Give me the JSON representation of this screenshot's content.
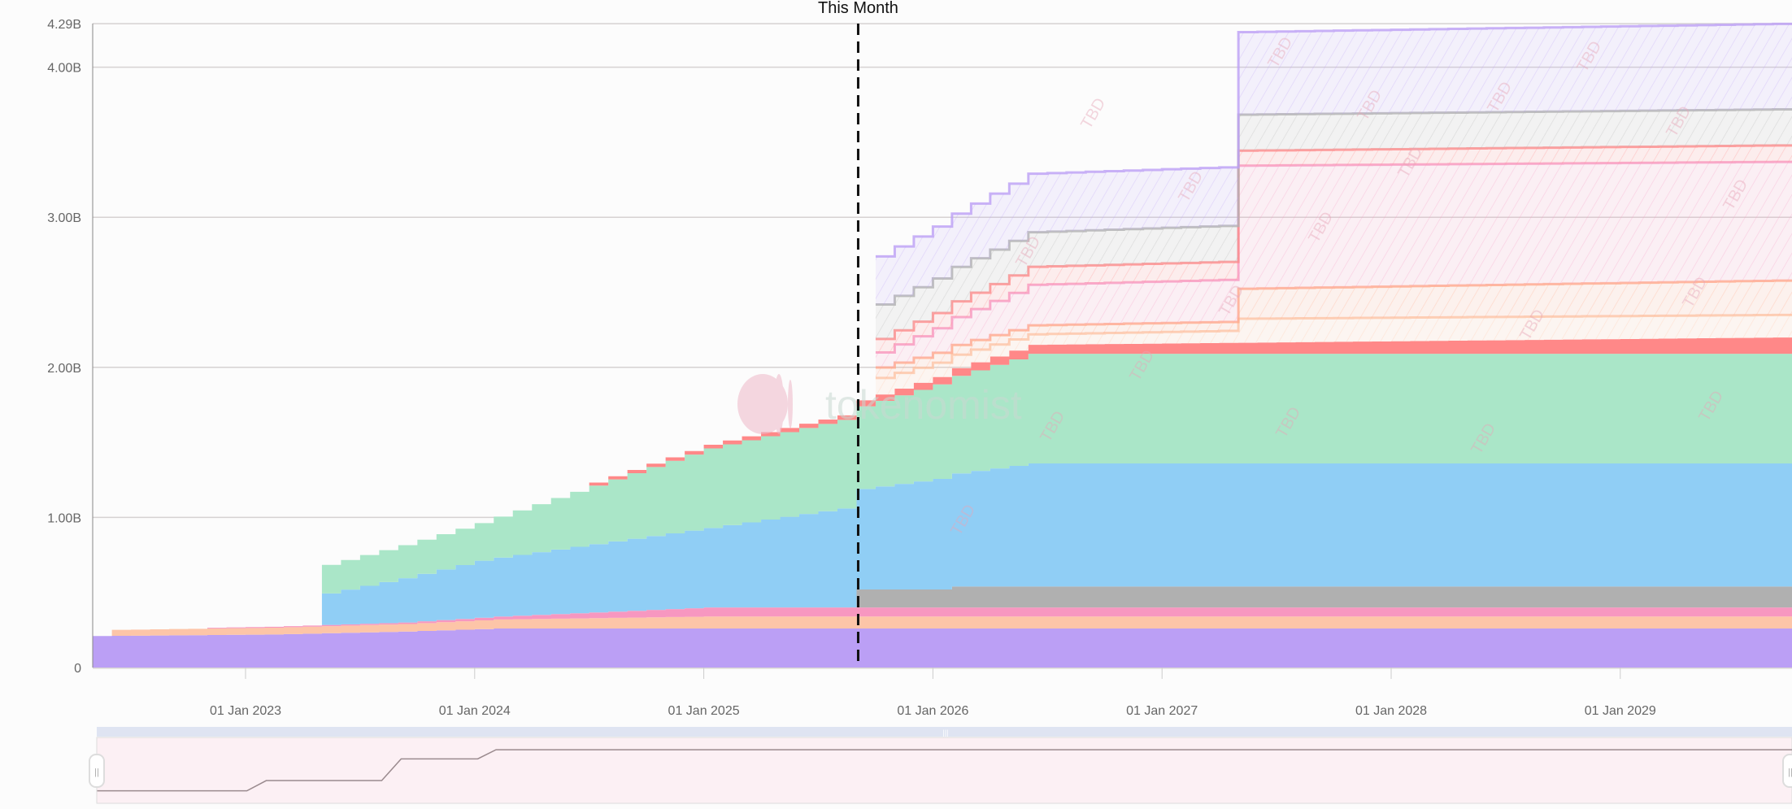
{
  "chart_data": {
    "type": "area",
    "stacked": true,
    "step": true,
    "x_start": "2022-05",
    "x_end": "2029-10",
    "ylim": [
      0,
      4.29
    ],
    "y_ticks": [
      {
        "value": 0,
        "label": "0"
      },
      {
        "value": 1,
        "label": "1.00B"
      },
      {
        "value": 2,
        "label": "2.00B"
      },
      {
        "value": 3,
        "label": "3.00B"
      },
      {
        "value": 4,
        "label": "4.00B"
      },
      {
        "value": 4.29,
        "label": "4.29B"
      }
    ],
    "x_ticks": [
      {
        "date": "2023-01",
        "label": "01 Jan 2023"
      },
      {
        "date": "2024-01",
        "label": "01 Jan 2024"
      },
      {
        "date": "2025-01",
        "label": "01 Jan 2025"
      },
      {
        "date": "2026-01",
        "label": "01 Jan 2026"
      },
      {
        "date": "2027-01",
        "label": "01 Jan 2027"
      },
      {
        "date": "2028-01",
        "label": "01 Jan 2028"
      },
      {
        "date": "2029-01",
        "label": "01 Jan 2029"
      }
    ],
    "grid": true,
    "unit": "B",
    "marker": {
      "date": "2025-09",
      "label": "This Month"
    },
    "projected_label": "TBD",
    "series": [
      {
        "color": "#bb9ff5",
        "projected": false,
        "points": [
          [
            "2022-05",
            0.21
          ],
          [
            "2023-02",
            0.22
          ],
          [
            "2023-09",
            0.24
          ],
          [
            "2024-02",
            0.26
          ],
          [
            "2029-10",
            0.26
          ]
        ]
      },
      {
        "color": "#fdc5a8",
        "projected": false,
        "points": [
          [
            "2022-06",
            0.04
          ],
          [
            "2023-09",
            0.05
          ],
          [
            "2024-02",
            0.06
          ],
          [
            "2025-01",
            0.08
          ],
          [
            "2029-10",
            0.08
          ]
        ]
      },
      {
        "color": "#f797c0",
        "projected": false,
        "points": [
          [
            "2022-11",
            0.005
          ],
          [
            "2023-09",
            0.01
          ],
          [
            "2024-02",
            0.02
          ],
          [
            "2025-01",
            0.06
          ],
          [
            "2029-10",
            0.06
          ]
        ]
      },
      {
        "color": "#b0b0b0",
        "projected": false,
        "points": [
          [
            "2025-09",
            0.12
          ],
          [
            "2026-01",
            0.12
          ],
          [
            "2026-02",
            0.14
          ],
          [
            "2029-10",
            0.14
          ]
        ]
      },
      {
        "color": "#90cef5",
        "projected": false,
        "points": [
          [
            "2023-05",
            0.21
          ],
          [
            "2024-01",
            0.38
          ],
          [
            "2025-01",
            0.53
          ],
          [
            "2025-08",
            0.66
          ],
          [
            "2025-09",
            0.67
          ],
          [
            "2026-06",
            0.82
          ],
          [
            "2029-10",
            0.82
          ]
        ]
      },
      {
        "color": "#aae6c8",
        "projected": false,
        "points": [
          [
            "2023-05",
            0.19
          ],
          [
            "2024-01",
            0.25
          ],
          [
            "2025-01",
            0.53
          ],
          [
            "2025-08",
            0.59
          ],
          [
            "2025-09",
            0.55
          ],
          [
            "2026-06",
            0.73
          ],
          [
            "2029-10",
            0.73
          ]
        ]
      },
      {
        "color": "#ff8888",
        "projected": false,
        "points": [
          [
            "2024-07",
            0.02
          ],
          [
            "2025-08",
            0.03
          ],
          [
            "2025-09",
            0.04
          ],
          [
            "2026-06",
            0.06
          ],
          [
            "2029-10",
            0.11
          ]
        ]
      },
      {
        "color": "#fdc5a8",
        "projected": true,
        "points": [
          [
            "2025-10",
            0.11
          ],
          [
            "2026-06",
            0.07
          ],
          [
            "2027-04",
            0.08
          ],
          [
            "2027-05",
            0.16
          ],
          [
            "2029-10",
            0.15
          ]
        ]
      },
      {
        "color": "#ffa98a",
        "projected": true,
        "points": [
          [
            "2025-10",
            0.07
          ],
          [
            "2026-06",
            0.06
          ],
          [
            "2027-04",
            0.06
          ],
          [
            "2027-05",
            0.2
          ],
          [
            "2029-10",
            0.23
          ]
        ]
      },
      {
        "color": "#f797c0",
        "projected": true,
        "points": [
          [
            "2025-10",
            0.1
          ],
          [
            "2026-06",
            0.27
          ],
          [
            "2027-04",
            0.28
          ],
          [
            "2027-05",
            0.82
          ],
          [
            "2029-10",
            0.79
          ]
        ]
      },
      {
        "color": "#ff8888",
        "projected": true,
        "points": [
          [
            "2025-10",
            0.09
          ],
          [
            "2026-06",
            0.12
          ],
          [
            "2027-04",
            0.12
          ],
          [
            "2027-05",
            0.1
          ],
          [
            "2029-10",
            0.11
          ]
        ]
      },
      {
        "color": "#b0b0b0",
        "projected": true,
        "points": [
          [
            "2025-10",
            0.23
          ],
          [
            "2026-06",
            0.23
          ],
          [
            "2027-04",
            0.24
          ],
          [
            "2027-05",
            0.24
          ],
          [
            "2029-10",
            0.24
          ]
        ]
      },
      {
        "color": "#bb9ff5",
        "projected": true,
        "points": [
          [
            "2025-10",
            0.32
          ],
          [
            "2026-06",
            0.39
          ],
          [
            "2027-04",
            0.39
          ],
          [
            "2027-05",
            0.55
          ],
          [
            "2029-10",
            0.57
          ]
        ]
      }
    ]
  },
  "watermark": {
    "text": "tokenomist"
  },
  "navigator": {
    "handle_left_icon": "grip-icon",
    "handle_right_icon": "grip-icon",
    "scrollbar_icon": "grip-icon"
  }
}
